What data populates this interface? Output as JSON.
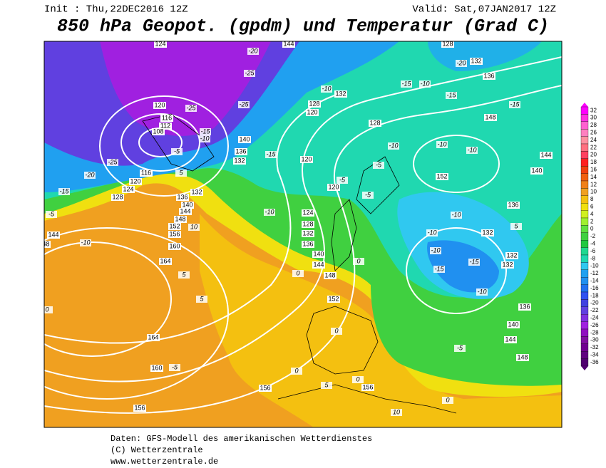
{
  "header": {
    "init": "Init : Thu,22DEC2016 12Z",
    "valid": "Valid: Sat,07JAN2017 12Z",
    "title": "850 hPa Geopot. (gpdm) und Temperatur (Grad C)"
  },
  "footer": {
    "lines": [
      "Daten: GFS-Modell des amerikanischen Wetterdienstes",
      "(C) Wetterzentrale",
      "www.wetterzentrale.de"
    ]
  },
  "colorbar": {
    "labels": [
      32,
      30,
      28,
      26,
      24,
      22,
      20,
      18,
      16,
      14,
      12,
      10,
      8,
      6,
      4,
      2,
      0,
      -2,
      -4,
      -6,
      -8,
      -10,
      -12,
      -14,
      -16,
      -18,
      -20,
      -22,
      -24,
      -26,
      -28,
      -30,
      -32,
      -34,
      -36
    ]
  },
  "map": {
    "geopotential_labels": [
      124,
      144,
      128,
      132,
      136,
      132,
      128,
      120,
      120,
      116,
      112,
      108,
      140,
      136,
      132,
      120,
      128,
      148,
      152,
      144,
      140,
      120,
      124,
      128,
      132,
      136,
      140,
      144,
      148,
      152,
      116,
      120,
      124,
      128,
      132,
      136,
      140,
      144,
      148,
      152,
      156,
      160,
      164,
      144,
      148,
      164,
      160,
      156,
      156,
      136,
      132,
      132,
      132,
      136,
      140,
      144,
      148,
      156
    ],
    "temperature_labels": [
      -20,
      -25,
      -25,
      -25,
      -10,
      -15,
      -10,
      -20,
      -15,
      -15,
      -10,
      -10,
      -15,
      -5,
      -5,
      -10,
      -5,
      -10,
      -15,
      -10,
      -5,
      -20,
      -25,
      -15,
      -5,
      -10,
      10,
      5,
      5,
      -10,
      -10,
      -10,
      -15,
      -15,
      -10,
      -5,
      0,
      0,
      5,
      5,
      0,
      -5,
      0,
      0,
      5,
      0,
      10,
      0
    ]
  }
}
